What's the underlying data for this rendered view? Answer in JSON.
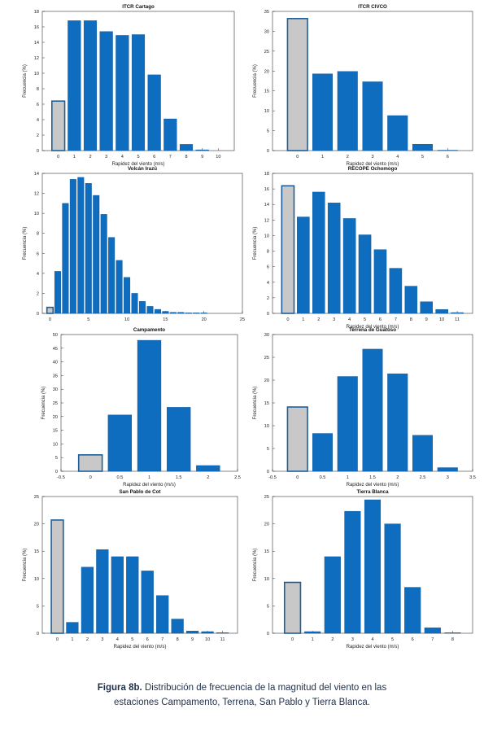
{
  "colors": {
    "bar": "#0f6dbf",
    "bar_edge": "#0b4f8f",
    "calm": "#c8c8c8",
    "calm_edge": "#1f5f98",
    "axis": "#333333"
  },
  "caption": {
    "label": "Figura 8b.",
    "line1": "Distribución de frecuencia de la magnitud del viento en las",
    "line2": "estaciones Campamento, Terrena, San Pablo y Tierra Blanca."
  },
  "chart_data": [
    {
      "type": "bar",
      "title": "ITCR Cartago",
      "xlabel": "Rapidez del viento (m/s)",
      "ylabel": "Frecuencia (%)",
      "ylim": [
        0,
        18
      ],
      "yticks": [
        0,
        2,
        4,
        6,
        8,
        10,
        12,
        14,
        16,
        18
      ],
      "xlim": [
        -1,
        11
      ],
      "xticks": [
        0,
        1,
        2,
        3,
        4,
        5,
        6,
        7,
        8,
        9,
        10
      ],
      "bar_width": 0.8,
      "calm": {
        "x": 0,
        "value": 6.4
      },
      "x": [
        1,
        2,
        3,
        4,
        5,
        6,
        7,
        8,
        9
      ],
      "values": [
        16.8,
        16.8,
        15.4,
        14.9,
        15.0,
        9.8,
        4.1,
        0.8,
        0.1
      ]
    },
    {
      "type": "bar",
      "title": "ITCR CIVCO",
      "xlabel": "Rapidez del viento (m/s)",
      "ylabel": "Frecuencia (%)",
      "ylim": [
        0,
        35
      ],
      "yticks": [
        0,
        5,
        10,
        15,
        20,
        25,
        30,
        35
      ],
      "xlim": [
        -1,
        7
      ],
      "xticks": [
        0,
        1,
        2,
        3,
        4,
        5,
        6
      ],
      "bar_width": 0.8,
      "calm": {
        "x": 0,
        "value": 33.2
      },
      "x": [
        1,
        2,
        3,
        4,
        5,
        6
      ],
      "values": [
        19.3,
        19.9,
        17.3,
        8.8,
        1.6,
        0.1
      ]
    },
    {
      "type": "bar",
      "title": "Volcán Irazú",
      "xlabel": "",
      "ylabel": "Frecuencia (%)",
      "ylim": [
        0,
        14
      ],
      "yticks": [
        0,
        2,
        4,
        6,
        8,
        10,
        12,
        14
      ],
      "xlim": [
        -1,
        25
      ],
      "xticks": [
        0,
        5,
        10,
        15,
        20,
        25
      ],
      "bar_width": 0.8,
      "calm": {
        "x": 0,
        "value": 0.6
      },
      "x": [
        1,
        2,
        3,
        4,
        5,
        6,
        7,
        8,
        9,
        10,
        11,
        12,
        13,
        14,
        15,
        16,
        17,
        18,
        19,
        20
      ],
      "values": [
        4.2,
        11.0,
        13.4,
        13.6,
        13.0,
        11.8,
        9.9,
        7.6,
        5.3,
        3.6,
        2.0,
        1.2,
        0.7,
        0.4,
        0.2,
        0.1,
        0.1,
        0.05,
        0.05,
        0.05
      ]
    },
    {
      "type": "bar",
      "title": "RECOPE Ochomogo",
      "xlabel": "Rapidez del viento (m/s)",
      "ylabel": "Frecuencia (%)",
      "ylim": [
        0,
        18
      ],
      "yticks": [
        0,
        2,
        4,
        6,
        8,
        10,
        12,
        14,
        16,
        18
      ],
      "xlim": [
        -1,
        12
      ],
      "xticks": [
        0,
        1,
        2,
        3,
        4,
        5,
        6,
        7,
        8,
        9,
        10,
        11
      ],
      "bar_width": 0.8,
      "calm": {
        "x": 0,
        "value": 16.4
      },
      "x": [
        1,
        2,
        3,
        4,
        5,
        6,
        7,
        8,
        9,
        10,
        11
      ],
      "values": [
        12.4,
        15.6,
        14.2,
        12.2,
        10.1,
        8.2,
        5.8,
        3.5,
        1.5,
        0.5,
        0.1
      ]
    },
    {
      "type": "bar",
      "title": "Campamento",
      "xlabel": "Rapidez del viento (m/s)",
      "ylabel": "Frecuencia (%)",
      "ylim": [
        0,
        50
      ],
      "yticks": [
        0,
        5,
        10,
        15,
        20,
        25,
        30,
        35,
        40,
        45,
        50
      ],
      "xlim": [
        -0.5,
        2.5
      ],
      "xticks": [
        -0.5,
        0,
        0.5,
        1,
        1.5,
        2,
        2.5
      ],
      "bar_width": 0.4,
      "calm": {
        "x": 0,
        "value": 6.0
      },
      "x": [
        0.5,
        1,
        1.5,
        2
      ],
      "values": [
        20.6,
        47.9,
        23.4,
        2.1
      ]
    },
    {
      "type": "bar",
      "title": "Terrena de Guatuso",
      "xlabel": "Rapidez del viento (m/s)",
      "ylabel": "Frecuencia (%)",
      "ylim": [
        0,
        30
      ],
      "yticks": [
        0,
        5,
        10,
        15,
        20,
        25,
        30
      ],
      "xlim": [
        -0.5,
        3.5
      ],
      "xticks": [
        -0.5,
        0,
        0.5,
        1,
        1.5,
        2,
        2.5,
        3,
        3.5
      ],
      "bar_width": 0.4,
      "calm": {
        "x": 0,
        "value": 14.1
      },
      "x": [
        0.5,
        1,
        1.5,
        2,
        2.5,
        3
      ],
      "values": [
        8.3,
        20.8,
        26.8,
        21.4,
        7.9,
        0.8
      ]
    },
    {
      "type": "bar",
      "title": "San Pablo de Cot",
      "xlabel": "Rapidez del viento (m/s)",
      "ylabel": "Frecuencia (%)",
      "ylim": [
        0,
        25
      ],
      "yticks": [
        0,
        5,
        10,
        15,
        20,
        25
      ],
      "xlim": [
        -1,
        12
      ],
      "xticks": [
        0,
        1,
        2,
        3,
        4,
        5,
        6,
        7,
        8,
        9,
        10,
        11
      ],
      "bar_width": 0.8,
      "calm": {
        "x": 0,
        "value": 20.7
      },
      "x": [
        1,
        2,
        3,
        4,
        5,
        6,
        7,
        8,
        9,
        10,
        11
      ],
      "values": [
        2.0,
        12.1,
        15.3,
        14.0,
        14.0,
        11.4,
        6.9,
        2.6,
        0.4,
        0.3,
        0.1
      ]
    },
    {
      "type": "bar",
      "title": "Tierra Blanca",
      "xlabel": "Rapidez del viento (m/s)",
      "ylabel": "Frecuencia (%)",
      "ylim": [
        0,
        25
      ],
      "yticks": [
        0,
        5,
        10,
        15,
        20,
        25
      ],
      "xlim": [
        -1,
        9
      ],
      "xticks": [
        0,
        1,
        2,
        3,
        4,
        5,
        6,
        7,
        8
      ],
      "bar_width": 0.8,
      "calm": {
        "x": 0,
        "value": 9.3
      },
      "x": [
        1,
        2,
        3,
        4,
        5,
        6,
        7,
        8
      ],
      "values": [
        0.3,
        14.0,
        22.3,
        24.4,
        20.0,
        8.4,
        1.0,
        0.1
      ]
    }
  ]
}
